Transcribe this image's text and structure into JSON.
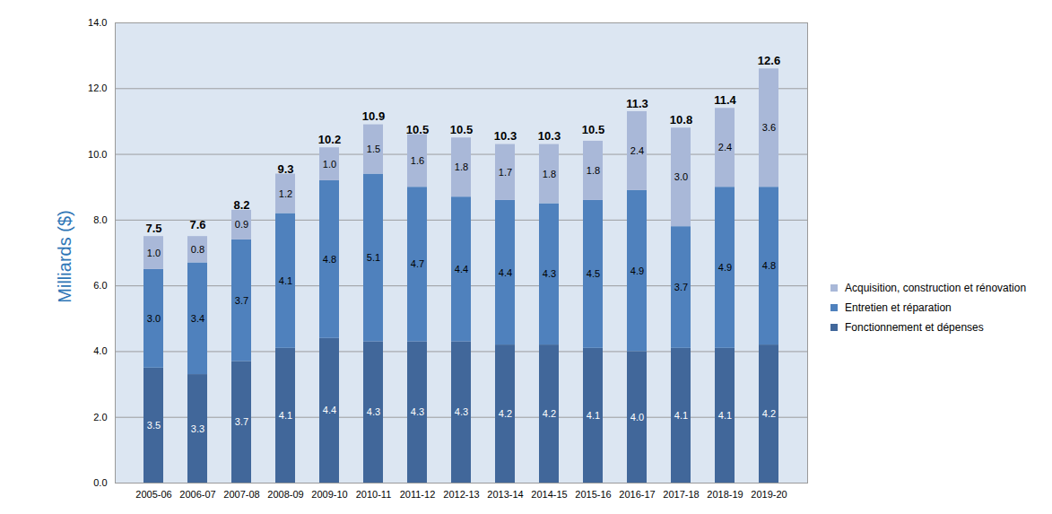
{
  "chart_data": {
    "type": "bar",
    "stacked": true,
    "data_labels": true,
    "grid": true,
    "legend": "right",
    "y_label": "Milliards ($)",
    "categories": [
      "2005-06",
      "2006-07",
      "2007-08",
      "2008-09",
      "2009-10",
      "2010-11",
      "2011-12",
      "2012-13",
      "2013-14",
      "2014-15",
      "2015-16",
      "2016-17",
      "2017-18",
      "2018-19",
      "2019-20"
    ],
    "series": [
      {
        "name": "Fonctionnement et dépenses",
        "color": "#41679a",
        "values": [
          3.5,
          3.3,
          3.7,
          4.1,
          4.4,
          4.3,
          4.3,
          4.3,
          4.2,
          4.2,
          4.1,
          4.0,
          4.1,
          4.1,
          4.2
        ],
        "value_labels": [
          "3.5",
          "3.3",
          "3.7",
          "4.1",
          "4.4",
          "4.3",
          "4.3",
          "4.3",
          "4.2",
          "4.2",
          "4.1",
          "4.0",
          "4.1",
          "4.1",
          "4.2"
        ]
      },
      {
        "name": "Entretien et réparation",
        "color": "#4f81bd",
        "values": [
          3.0,
          3.4,
          3.7,
          4.1,
          4.8,
          5.1,
          4.7,
          4.4,
          4.4,
          4.3,
          4.5,
          4.9,
          3.7,
          4.9,
          4.8
        ],
        "value_labels": [
          "3.0",
          "3.4",
          "3.7",
          "4.1",
          "4.8",
          "5.1",
          "4.7",
          "4.4",
          "4.4",
          "4.3",
          "4.5",
          "4.9",
          "3.7",
          "4.9",
          "4.8"
        ]
      },
      {
        "name": "Acquisition, construction et rénovation",
        "color": "#a9b8d8",
        "values": [
          1.0,
          0.8,
          0.9,
          1.2,
          1.0,
          1.5,
          1.6,
          1.8,
          1.7,
          1.8,
          1.8,
          2.4,
          3.0,
          2.4,
          3.6
        ],
        "value_labels": [
          "1.0",
          "0.8",
          "0.9",
          "1.2",
          "1.0",
          "1.5",
          "1.6",
          "1.8",
          "1.7",
          "1.8",
          "1.8",
          "2.4",
          "3.0",
          "2.4",
          "3.6"
        ]
      }
    ],
    "totals": [
      7.5,
      7.6,
      8.2,
      9.3,
      10.2,
      10.9,
      10.5,
      10.5,
      10.3,
      10.3,
      10.5,
      11.3,
      10.8,
      11.4,
      12.6
    ],
    "ylim": [
      0,
      14
    ],
    "yticks": [
      {
        "value": 0,
        "label": "0.0"
      },
      {
        "value": 2,
        "label": "2.0"
      },
      {
        "value": 4,
        "label": "4.0"
      },
      {
        "value": 6,
        "label": "6.0"
      },
      {
        "value": 8,
        "label": "8.0"
      },
      {
        "value": 10,
        "label": "10.0"
      },
      {
        "value": 12,
        "label": "12.0"
      },
      {
        "value": 14,
        "label": "14.0"
      }
    ]
  }
}
